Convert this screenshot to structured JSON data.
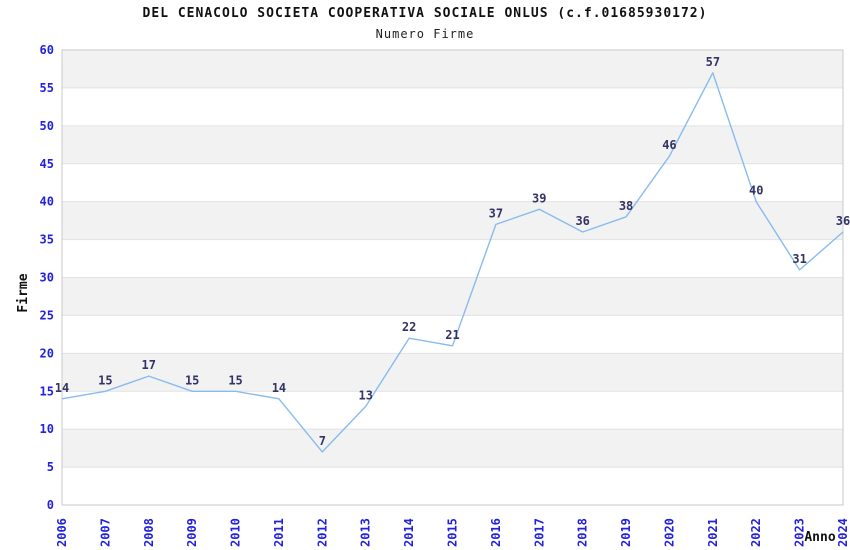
{
  "header": {
    "title": "DEL CENACOLO SOCIETA COOPERATIVA SOCIALE ONLUS (c.f.01685930172)",
    "subtitle": "Numero Firme"
  },
  "chart_data": {
    "type": "line",
    "title": "DEL CENACOLO SOCIETA COOPERATIVA SOCIALE ONLUS (c.f.01685930172)",
    "subtitle": "Numero Firme",
    "xlabel": "Anno",
    "ylabel": "Firme",
    "categories": [
      "2006",
      "2007",
      "2008",
      "2009",
      "2010",
      "2011",
      "2012",
      "2013",
      "2014",
      "2015",
      "2016",
      "2017",
      "2018",
      "2019",
      "2020",
      "2021",
      "2022",
      "2023",
      "2024"
    ],
    "series": [
      {
        "name": "Numero Firme",
        "values": [
          14,
          15,
          17,
          15,
          15,
          14,
          7,
          13,
          22,
          21,
          37,
          39,
          36,
          38,
          46,
          57,
          40,
          31,
          36
        ]
      }
    ],
    "ylim": [
      0,
      60
    ],
    "ytick_step": 5,
    "yticks": [
      0,
      5,
      10,
      15,
      20,
      25,
      30,
      35,
      40,
      45,
      50,
      55,
      60
    ],
    "grid": true,
    "legend_position": "none",
    "data_labels_visible": true,
    "colors": {
      "line": "#88bbee",
      "tick_label": "#2222dd",
      "data_label": "#333366",
      "band": "#f2f2f2",
      "gridline": "#e2e2e2",
      "plot_border": "#c9c9c9",
      "axis_text": "#111111",
      "background": "#ffffff"
    }
  }
}
